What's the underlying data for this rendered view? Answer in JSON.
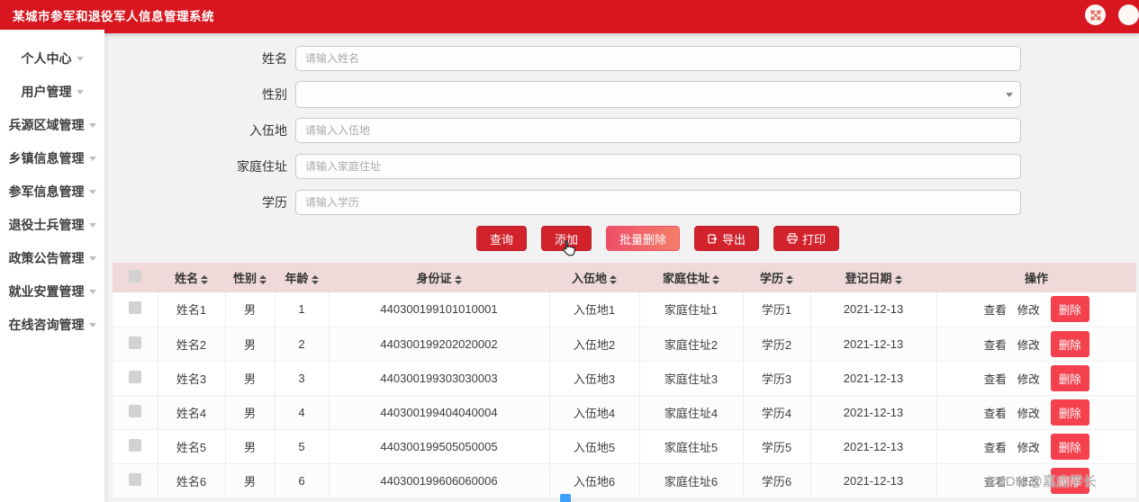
{
  "header": {
    "title": "某城市参军和退役军人信息管理系统",
    "icons": {
      "fullscreen": "expand-arrows-icon",
      "user": "user-circle-icon"
    },
    "colors": {
      "bar": "#d8161f",
      "button_red": "#d2232d",
      "delete_red": "#f4414d",
      "header_pink": "#efd9d9"
    }
  },
  "sidebar": {
    "items": [
      {
        "label": "个人中心"
      },
      {
        "label": "用户管理"
      },
      {
        "label": "兵源区域管理"
      },
      {
        "label": "乡镇信息管理"
      },
      {
        "label": "参军信息管理"
      },
      {
        "label": "退役士兵管理"
      },
      {
        "label": "政策公告管理"
      },
      {
        "label": "就业安置管理"
      },
      {
        "label": "在线咨询管理"
      }
    ]
  },
  "form": {
    "fields": [
      {
        "label": "姓名",
        "type": "input",
        "placeholder": "请输入姓名",
        "value": ""
      },
      {
        "label": "性别",
        "type": "select",
        "placeholder": "",
        "value": ""
      },
      {
        "label": "入伍地",
        "type": "input",
        "placeholder": "请输入入伍地",
        "value": ""
      },
      {
        "label": "家庭住址",
        "type": "input",
        "placeholder": "请输入家庭住址",
        "value": ""
      },
      {
        "label": "学历",
        "type": "input",
        "placeholder": "请输入学历",
        "value": ""
      }
    ]
  },
  "toolbar": {
    "query": "查询",
    "add": "添加",
    "batch_delete": "批量删除",
    "export": "导出",
    "print": "打印",
    "export_icon": "file-export-icon",
    "print_icon": "printer-icon"
  },
  "table": {
    "columns": [
      {
        "label": "姓名",
        "key": "name",
        "sortable": true
      },
      {
        "label": "性别",
        "key": "gender",
        "sortable": true
      },
      {
        "label": "年龄",
        "key": "age",
        "sortable": true
      },
      {
        "label": "身份证",
        "key": "id_card",
        "sortable": true
      },
      {
        "label": "入伍地",
        "key": "enlist_place",
        "sortable": true
      },
      {
        "label": "家庭住址",
        "key": "address",
        "sortable": true
      },
      {
        "label": "学历",
        "key": "education",
        "sortable": true
      },
      {
        "label": "登记日期",
        "key": "reg_date",
        "sortable": true
      },
      {
        "label": "操作",
        "key": "actions",
        "sortable": false
      }
    ],
    "action_labels": {
      "view": "查看",
      "edit": "修改",
      "delete": "删除"
    },
    "rows": [
      {
        "name": "姓名1",
        "gender": "男",
        "age": "1",
        "id_card": "440300199101010001",
        "enlist_place": "入伍地1",
        "address": "家庭住址1",
        "education": "学历1",
        "reg_date": "2021-12-13"
      },
      {
        "name": "姓名2",
        "gender": "男",
        "age": "2",
        "id_card": "440300199202020002",
        "enlist_place": "入伍地2",
        "address": "家庭住址2",
        "education": "学历2",
        "reg_date": "2021-12-13"
      },
      {
        "name": "姓名3",
        "gender": "男",
        "age": "3",
        "id_card": "440300199303030003",
        "enlist_place": "入伍地3",
        "address": "家庭住址3",
        "education": "学历3",
        "reg_date": "2021-12-13"
      },
      {
        "name": "姓名4",
        "gender": "男",
        "age": "4",
        "id_card": "440300199404040004",
        "enlist_place": "入伍地4",
        "address": "家庭住址4",
        "education": "学历4",
        "reg_date": "2021-12-13"
      },
      {
        "name": "姓名5",
        "gender": "男",
        "age": "5",
        "id_card": "440300199505050005",
        "enlist_place": "入伍地5",
        "address": "家庭住址5",
        "education": "学历5",
        "reg_date": "2021-12-13"
      },
      {
        "name": "姓名6",
        "gender": "男",
        "age": "6",
        "id_card": "440300199606060006",
        "enlist_place": "入伍地6",
        "address": "家庭住址6",
        "education": "学历6",
        "reg_date": "2021-12-13"
      }
    ]
  },
  "watermark": "CSDN @嘉应学长"
}
